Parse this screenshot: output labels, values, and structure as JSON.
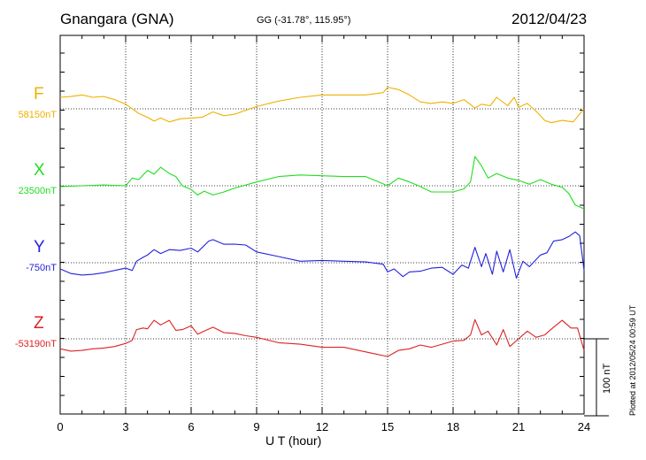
{
  "header": {
    "station": "Gnangara (GNA)",
    "coords": "GG (-31.78°, 115.95°)",
    "date": "2012/04/23"
  },
  "footer": {
    "plotted": "Plotted at 2012/05/24 00:59 UT",
    "scale": "100 nT"
  },
  "chart_data": {
    "type": "line",
    "title": "Gnangara (GNA)",
    "xlabel": "U T (hour)",
    "ylabel": "",
    "xlim": [
      0,
      24
    ],
    "xticks": [
      "0",
      "3",
      "6",
      "9",
      "12",
      "15",
      "18",
      "21",
      "24"
    ],
    "grid": true,
    "scale_bar_nT": 100,
    "series": [
      {
        "name": "F",
        "baseline_label": "58150nT",
        "baseline": 58150,
        "color": "#f0b000",
        "x": [
          0,
          0.5,
          1,
          1.5,
          2,
          2.5,
          3,
          3.3,
          3.6,
          4,
          4.3,
          4.6,
          5,
          5.5,
          6,
          6.5,
          7,
          7.5,
          8,
          9,
          10,
          11,
          12,
          13,
          14,
          14.8,
          15,
          15.5,
          16,
          16.5,
          17,
          17.5,
          18,
          18.5,
          19,
          19.3,
          19.7,
          20,
          20.5,
          20.8,
          21,
          21.4,
          21.8,
          22.2,
          22.5,
          23,
          23.5,
          24
        ],
        "values": [
          58165,
          58166,
          58168,
          58165,
          58166,
          58162,
          58156,
          58150,
          58144,
          58139,
          58134,
          58138,
          58133,
          58137,
          58138,
          58139,
          58146,
          58141,
          58143,
          58153,
          58160,
          58165,
          58168,
          58168,
          58168,
          58171,
          58178,
          58175,
          58168,
          58159,
          58157,
          58159,
          58157,
          58162,
          58151,
          58156,
          58154,
          58165,
          58154,
          58165,
          58152,
          58157,
          58147,
          58135,
          58132,
          58135,
          58133,
          58150
        ]
      },
      {
        "name": "X",
        "baseline_label": "23500nT",
        "baseline": 23500,
        "color": "#22dd22",
        "x": [
          0,
          1,
          2,
          3,
          3.3,
          3.6,
          4,
          4.3,
          4.6,
          5,
          5.3,
          5.6,
          6,
          6.3,
          6.6,
          7,
          7.5,
          8,
          9,
          10,
          11,
          12,
          13,
          14,
          14.5,
          15,
          15.5,
          16,
          16.5,
          17,
          17.5,
          18,
          18.5,
          18.8,
          19,
          19.3,
          19.6,
          20,
          20.5,
          21,
          21.5,
          22,
          22.5,
          23,
          23.3,
          23.6,
          24
        ],
        "values": [
          23499,
          23500,
          23501,
          23500,
          23510,
          23508,
          23520,
          23515,
          23524,
          23516,
          23512,
          23500,
          23495,
          23488,
          23493,
          23488,
          23492,
          23497,
          23505,
          23512,
          23514,
          23513,
          23512,
          23512,
          23506,
          23500,
          23510,
          23505,
          23499,
          23492,
          23492,
          23492,
          23496,
          23505,
          23538,
          23526,
          23510,
          23516,
          23510,
          23507,
          23502,
          23508,
          23502,
          23498,
          23490,
          23475,
          23470
        ]
      },
      {
        "name": "Y",
        "baseline_label": "-750nT",
        "baseline": -750,
        "color": "#2222dd",
        "x": [
          0,
          0.5,
          1,
          1.5,
          2,
          2.5,
          3,
          3.3,
          3.5,
          3.8,
          4,
          4.3,
          4.6,
          5,
          5.5,
          6,
          6.3,
          6.8,
          7,
          7.5,
          8,
          8.5,
          9,
          10,
          11,
          12,
          13,
          14,
          14.8,
          15,
          15.3,
          15.7,
          16,
          16.5,
          17,
          17.5,
          18,
          18.4,
          18.7,
          19,
          19.3,
          19.5,
          19.8,
          20,
          20.3,
          20.6,
          20.9,
          21.2,
          21.5,
          22,
          22.3,
          22.6,
          23,
          23.3,
          23.6,
          23.8,
          24
        ],
        "values": [
          -758,
          -764,
          -766,
          -765,
          -763,
          -760,
          -757,
          -760,
          -748,
          -743,
          -740,
          -733,
          -738,
          -733,
          -734,
          -731,
          -736,
          -722,
          -720,
          -726,
          -726,
          -727,
          -736,
          -742,
          -748,
          -747,
          -748,
          -749,
          -752,
          -762,
          -758,
          -768,
          -762,
          -761,
          -757,
          -756,
          -765,
          -753,
          -757,
          -730,
          -755,
          -738,
          -765,
          -735,
          -762,
          -733,
          -770,
          -748,
          -755,
          -740,
          -737,
          -722,
          -720,
          -716,
          -710,
          -715,
          -760
        ]
      },
      {
        "name": "Z",
        "baseline_label": "-53190nT",
        "baseline": -53190,
        "color": "#dd2222",
        "x": [
          0,
          0.5,
          1,
          1.5,
          2,
          2.5,
          3,
          3.3,
          3.5,
          3.8,
          4,
          4.3,
          4.6,
          5,
          5.3,
          5.6,
          6,
          6.3,
          6.6,
          7,
          7.5,
          8,
          8.5,
          9,
          10,
          11,
          12,
          13,
          14,
          14.5,
          15,
          15.5,
          16,
          16.5,
          17,
          17.5,
          18,
          18.5,
          18.8,
          19,
          19.3,
          19.6,
          20,
          20.3,
          20.6,
          21,
          21.4,
          21.8,
          22.2,
          22.6,
          23,
          23.4,
          23.7,
          24
        ],
        "values": [
          -53203,
          -53206,
          -53205,
          -53203,
          -53202,
          -53200,
          -53196,
          -53192,
          -53178,
          -53176,
          -53177,
          -53166,
          -53172,
          -53166,
          -53179,
          -53178,
          -53173,
          -53184,
          -53180,
          -53175,
          -53182,
          -53183,
          -53186,
          -53188,
          -53195,
          -53197,
          -53201,
          -53201,
          -53207,
          -53210,
          -53213,
          -53205,
          -53203,
          -53198,
          -53201,
          -53197,
          -53193,
          -53192,
          -53185,
          -53165,
          -53185,
          -53180,
          -53198,
          -53178,
          -53200,
          -53190,
          -53180,
          -53188,
          -53185,
          -53175,
          -53166,
          -53176,
          -53176,
          -53205
        ]
      }
    ]
  }
}
